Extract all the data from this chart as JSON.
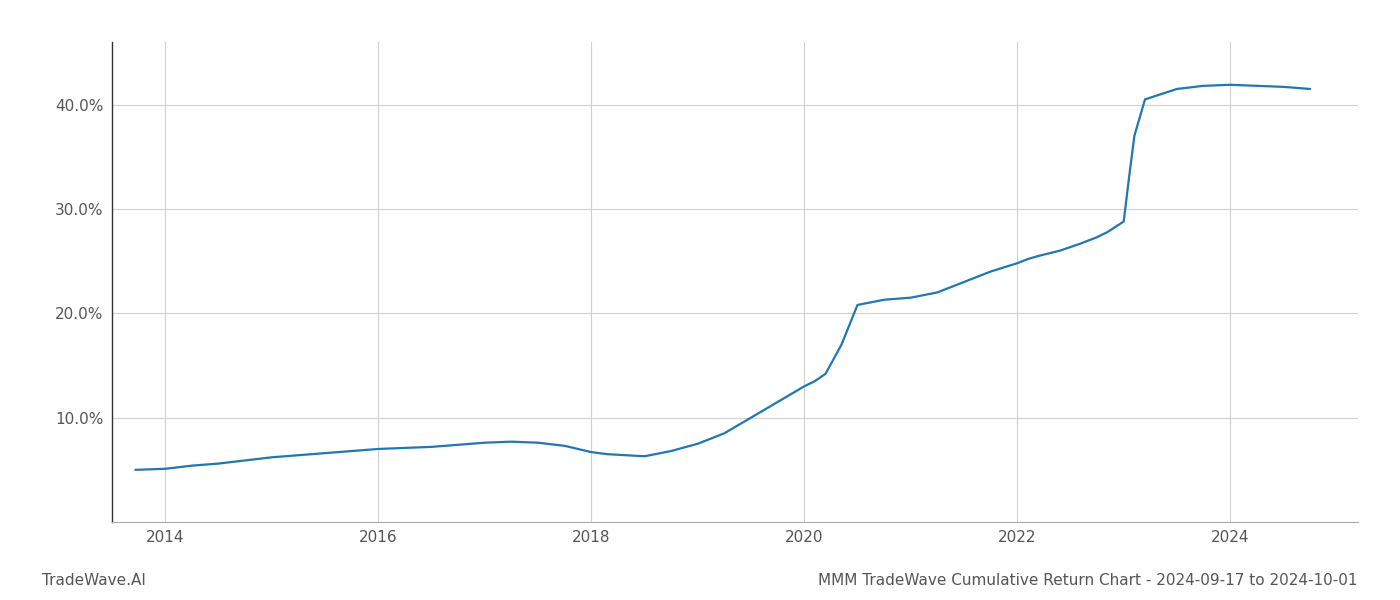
{
  "title": "MMM TradeWave Cumulative Return Chart - 2024-09-17 to 2024-10-01",
  "watermark": "TradeWave.AI",
  "line_color": "#1f77b4",
  "line_width": 1.6,
  "background_color": "#ffffff",
  "grid_color": "#d0d0d0",
  "x_data": [
    2013.72,
    2014.0,
    2014.25,
    2014.5,
    2014.75,
    2015.0,
    2015.25,
    2015.5,
    2015.75,
    2016.0,
    2016.25,
    2016.5,
    2016.75,
    2017.0,
    2017.25,
    2017.5,
    2017.75,
    2018.0,
    2018.15,
    2018.5,
    2018.75,
    2019.0,
    2019.25,
    2019.5,
    2019.75,
    2020.0,
    2020.1,
    2020.2,
    2020.35,
    2020.5,
    2020.75,
    2021.0,
    2021.25,
    2021.5,
    2021.75,
    2022.0,
    2022.1,
    2022.2,
    2022.4,
    2022.6,
    2022.75,
    2022.85,
    2023.0,
    2023.05,
    2023.1,
    2023.2,
    2023.5,
    2023.75,
    2024.0,
    2024.25,
    2024.5,
    2024.75
  ],
  "y_data": [
    5.0,
    5.1,
    5.4,
    5.6,
    5.9,
    6.2,
    6.4,
    6.6,
    6.8,
    7.0,
    7.1,
    7.2,
    7.4,
    7.6,
    7.7,
    7.6,
    7.3,
    6.7,
    6.5,
    6.3,
    6.8,
    7.5,
    8.5,
    10.0,
    11.5,
    13.0,
    13.5,
    14.2,
    17.0,
    20.8,
    21.3,
    21.5,
    22.0,
    23.0,
    24.0,
    24.8,
    25.2,
    25.5,
    26.0,
    26.7,
    27.3,
    27.8,
    28.8,
    33.0,
    37.0,
    40.5,
    41.5,
    41.8,
    41.9,
    41.8,
    41.7,
    41.5
  ],
  "xlim": [
    2013.5,
    2025.2
  ],
  "ylim": [
    0,
    46
  ],
  "yticks": [
    10.0,
    20.0,
    30.0,
    40.0
  ],
  "ytick_labels": [
    "10.0%",
    "20.0%",
    "30.0%",
    "40.0%"
  ],
  "xtick_labels": [
    "2014",
    "2016",
    "2018",
    "2020",
    "2022",
    "2024"
  ],
  "xtick_positions": [
    2014,
    2016,
    2018,
    2020,
    2022,
    2024
  ],
  "title_fontsize": 11,
  "tick_fontsize": 11,
  "watermark_fontsize": 11,
  "watermark_color": "#555555"
}
